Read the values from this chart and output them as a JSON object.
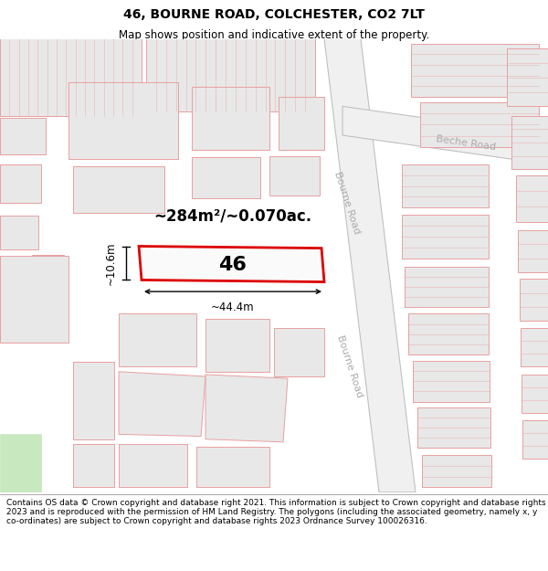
{
  "title": "46, BOURNE ROAD, COLCHESTER, CO2 7LT",
  "subtitle": "Map shows position and indicative extent of the property.",
  "footer": "Contains OS data © Crown copyright and database right 2021. This information is subject to Crown copyright and database rights 2023 and is reproduced with the permission of HM Land Registry. The polygons (including the associated geometry, namely x, y co-ordinates) are subject to Crown copyright and database rights 2023 Ordnance Survey 100026316.",
  "area_label": "~284m²/~0.070ac.",
  "width_label": "~44.4m",
  "height_label": "~10.6m",
  "number_label": "46",
  "map_bg": "#ffffff",
  "building_fill": "#e8e8e8",
  "building_stroke": "#e8a0a0",
  "highlight_stroke": "#dd0000",
  "road_label_color": "#aaaaaa",
  "road_label_1": "Bourne Road",
  "road_label_2": "Beche Road",
  "title_fontsize": 10,
  "subtitle_fontsize": 8.5,
  "footer_fontsize": 6.5,
  "green_fill": "#c8e8c0"
}
